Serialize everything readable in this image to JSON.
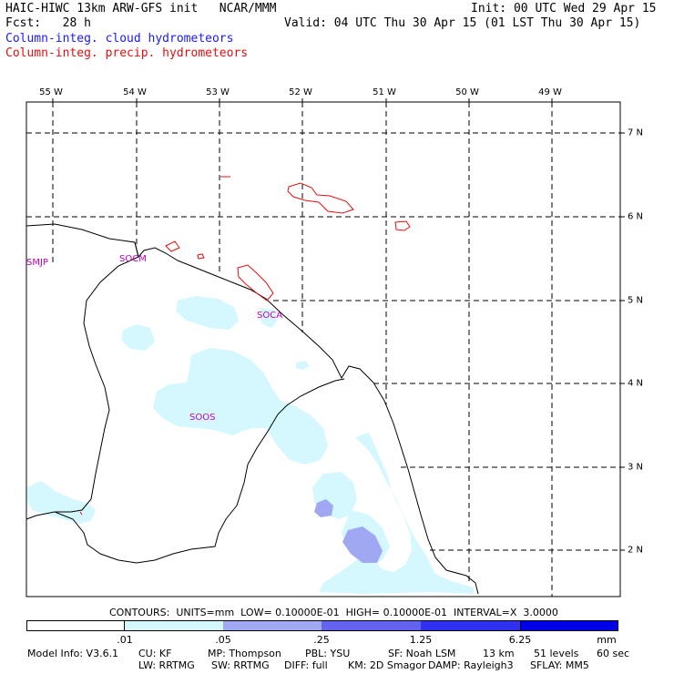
{
  "header": {
    "left_line1": "HAIC-HIWC 13km ARW-GFS init   NCAR/MMM",
    "left_line2": "Fcst:   28 h",
    "right_line1": "Init: 00 UTC Wed 29 Apr 15",
    "right_line2": "Valid: 04 UTC Thu 30 Apr 15 (01 LST Thu 30 Apr 15)",
    "legend_cloud": "Column-integ. cloud hydrometeors",
    "legend_precip": "Column-integ. precip. hydrometeors"
  },
  "colors": {
    "cloud_text": "#1a1aff",
    "precip_text": "#e01010",
    "station_text": "#c000c0",
    "shade_1": "#d4f8fd",
    "shade_2": "#a0a8f4",
    "shade_3": "#6363f0",
    "shade_4": "#3030f0",
    "shade_5": "#0000e6"
  },
  "map": {
    "lon_labels": [
      "55 W",
      "54 W",
      "53 W",
      "52 W",
      "51 W",
      "50 W",
      "49 W"
    ],
    "lat_labels": [
      "7 N",
      "6 N",
      "5 N",
      "4 N",
      "3 N",
      "2 N"
    ],
    "stations": [
      "SMJP",
      "SOCM",
      "SOCA",
      "SOOS"
    ]
  },
  "contour_info": "CONTOURS:  UNITS=mm  LOW= 0.10000E-01  HIGH= 0.10000E-01  INTERVAL=X  3.0000",
  "colorbar": {
    "labels": [
      ".01",
      ".05",
      ".25",
      "1.25",
      "6.25"
    ],
    "units": "mm"
  },
  "model_info": {
    "line1": [
      "Model Info: V3.6.1",
      "CU: KF",
      "MP: Thompson",
      "PBL: YSU",
      "SF: Noah LSM",
      "13 km",
      "51 levels",
      "60 sec"
    ],
    "line2": [
      "LW: RRTMG",
      "SW: RRTMG",
      "DIFF: full",
      "KM: 2D Smagor",
      "DAMP: Rayleigh3",
      "SFLAY: MM5"
    ]
  }
}
